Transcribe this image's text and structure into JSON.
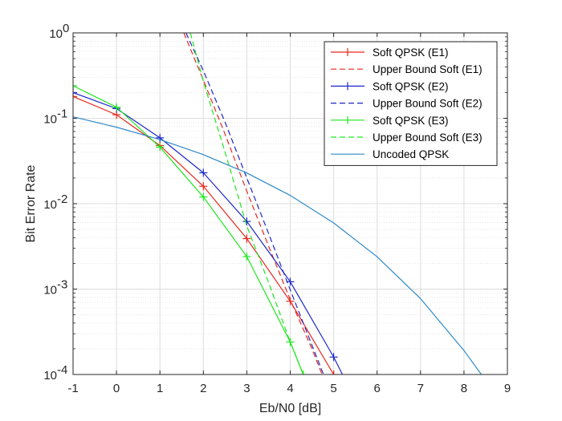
{
  "chart_data": {
    "type": "line",
    "title": "",
    "xlabel": "Eb/N0 [dB]",
    "ylabel": "Bit Error Rate",
    "xlim": [
      -1,
      9
    ],
    "ylim": [
      0.0001,
      1
    ],
    "yscale": "log",
    "grid": true,
    "minor_grid": true,
    "legend_position": "top-right",
    "x_ticks": [
      "-1",
      "0",
      "1",
      "2",
      "3",
      "4",
      "5",
      "6",
      "7",
      "8",
      "9"
    ],
    "y_ticks": [
      {
        "base": "10",
        "exp": "0"
      },
      {
        "base": "10",
        "exp": "-1"
      },
      {
        "base": "10",
        "exp": "-2"
      },
      {
        "base": "10",
        "exp": "-3"
      },
      {
        "base": "10",
        "exp": "-4"
      }
    ],
    "series": [
      {
        "name": "Soft QPSK (E1)",
        "color": "#e8281e",
        "style": "solid",
        "marker": "plus",
        "x": [
          -1,
          0,
          1,
          2,
          3,
          4,
          5
        ],
        "y": [
          0.18,
          0.11,
          0.048,
          0.016,
          0.0039,
          0.00072,
          0.0001
        ]
      },
      {
        "name": "Upper Bound Soft (E1)",
        "color": "#e8281e",
        "style": "dashed",
        "marker": "none",
        "x": [
          1.55,
          2,
          2.5,
          3,
          3.5,
          4,
          4.5,
          5
        ],
        "y": [
          1,
          0.28,
          0.065,
          0.014,
          0.0032,
          0.00075,
          0.0002,
          4.5e-05
        ]
      },
      {
        "name": "Soft QPSK (E2)",
        "color": "#1e28c8",
        "style": "solid",
        "marker": "plus",
        "x": [
          -1,
          0,
          1,
          2,
          3,
          4,
          5,
          5.5
        ],
        "y": [
          0.2,
          0.13,
          0.059,
          0.023,
          0.0062,
          0.00122,
          0.00016,
          5e-05
        ]
      },
      {
        "name": "Upper Bound Soft (E2)",
        "color": "#1e28c8",
        "style": "dashed",
        "marker": "none",
        "x": [
          1.6,
          2,
          2.5,
          3,
          3.5,
          4,
          4.5,
          5
        ],
        "y": [
          1,
          0.36,
          0.09,
          0.02,
          0.0045,
          0.00098,
          0.00022,
          5e-05
        ]
      },
      {
        "name": "Soft QPSK (E3)",
        "color": "#1ee61e",
        "style": "solid",
        "marker": "plus",
        "x": [
          -1,
          0,
          1,
          2,
          3,
          4,
          4.3
        ],
        "y": [
          0.24,
          0.135,
          0.046,
          0.012,
          0.0024,
          0.00024,
          0.0001
        ]
      },
      {
        "name": "Upper Bound Soft (E3)",
        "color": "#1ee61e",
        "style": "dashed",
        "marker": "none",
        "x": [
          1.7,
          2,
          2.5,
          3,
          3.5,
          4,
          4.3
        ],
        "y": [
          1,
          0.27,
          0.04,
          0.0055,
          0.0012,
          0.00024,
          0.0001
        ]
      },
      {
        "name": "Uncoded QPSK",
        "color": "#2f8ac9",
        "style": "solid",
        "marker": "none",
        "x": [
          -1,
          0,
          1,
          2,
          3,
          4,
          5,
          6,
          7,
          8,
          8.4
        ],
        "y": [
          0.104,
          0.0786,
          0.0563,
          0.0375,
          0.0229,
          0.0125,
          0.00595,
          0.00239,
          0.000773,
          0.000191,
          0.0001
        ]
      }
    ]
  }
}
